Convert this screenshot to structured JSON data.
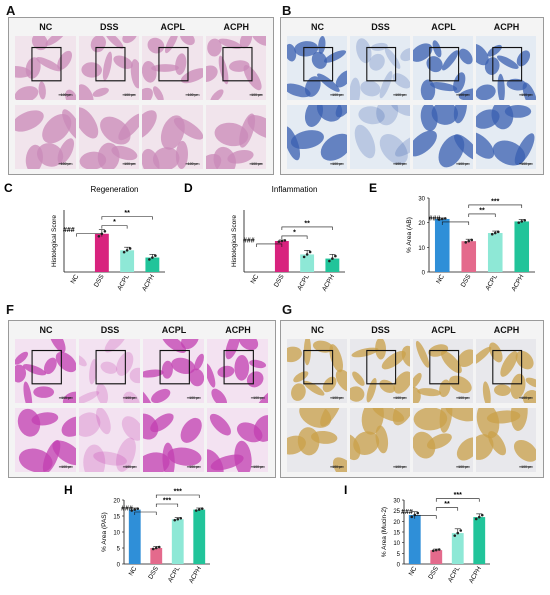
{
  "panels": {
    "A": {
      "letter": "A",
      "columns": [
        "NC",
        "DSS",
        "ACPL",
        "ACPH"
      ],
      "scale": "100 μm",
      "stain": "H&E",
      "colors": {
        "tissue": "#c989b8",
        "bg": "#f1e4ec"
      }
    },
    "B": {
      "letter": "B",
      "columns": [
        "NC",
        "DSS",
        "ACPL",
        "ACPH"
      ],
      "scale": "100 μm",
      "stain": "AB",
      "colors": {
        "tissue": "#3a5fb0",
        "bg": "#e4ebf3"
      }
    },
    "F": {
      "letter": "F",
      "columns": [
        "NC",
        "DSS",
        "ACPL",
        "ACPH"
      ],
      "scale": "100 μm",
      "stain": "PAS",
      "colors": {
        "tissue": "#c23fb0",
        "bg": "#f3e2f1"
      }
    },
    "G": {
      "letter": "G",
      "columns": [
        "NC",
        "DSS",
        "ACPL",
        "ACPH"
      ],
      "scale": "100 μm",
      "stain": "Mucin-2",
      "colors": {
        "tissue": "#c9a04a",
        "bg": "#e8e8ec"
      }
    }
  },
  "chart_data": [
    {
      "id": "C",
      "letter": "C",
      "type": "bar",
      "title": "Regeneration",
      "ylabel": "Histological Score",
      "categories": [
        "NC",
        "DSS",
        "ACPL",
        "ACPH"
      ],
      "values": [
        0,
        3.7,
        2.1,
        1.4
      ],
      "errors": [
        0,
        0.4,
        0.3,
        0.3
      ],
      "ylim": [
        0,
        6
      ],
      "colors": [
        "#2f8fd8",
        "#d8237e",
        "#8ee8d6",
        "#21c49a"
      ],
      "brackets": [
        {
          "from": 0,
          "to": 1,
          "label": "###"
        },
        {
          "from": 1,
          "to": 2,
          "label": "*"
        },
        {
          "from": 1,
          "to": 3,
          "label": "**"
        }
      ]
    },
    {
      "id": "D",
      "letter": "D",
      "type": "bar",
      "title": "Inflammation",
      "ylabel": "Histological Score",
      "categories": [
        "NC",
        "DSS",
        "ACPL",
        "ACPH"
      ],
      "values": [
        0,
        3.0,
        1.7,
        1.3
      ],
      "errors": [
        0,
        0.1,
        0.4,
        0.4
      ],
      "ylim": [
        0,
        6
      ],
      "colors": [
        "#2f8fd8",
        "#d8237e",
        "#8ee8d6",
        "#21c49a"
      ],
      "brackets": [
        {
          "from": 0,
          "to": 1,
          "label": "###"
        },
        {
          "from": 1,
          "to": 2,
          "label": "*"
        },
        {
          "from": 1,
          "to": 3,
          "label": "**"
        }
      ]
    },
    {
      "id": "E",
      "letter": "E",
      "type": "bar",
      "title": "",
      "ylabel": "% Area (AB)",
      "categories": [
        "NC",
        "DSS",
        "ACPL",
        "ACPH"
      ],
      "values": [
        21.5,
        12.5,
        15.8,
        20.5
      ],
      "errors": [
        0.4,
        0.8,
        0.8,
        0.8
      ],
      "ylim": [
        0,
        30
      ],
      "yticks": [
        0,
        10,
        20,
        30
      ],
      "colors": [
        "#2f8fd8",
        "#e46a8c",
        "#8ee8d6",
        "#21c49a"
      ],
      "brackets": [
        {
          "from": 0,
          "to": 1,
          "label": "###"
        },
        {
          "from": 1,
          "to": 2,
          "label": "**"
        },
        {
          "from": 1,
          "to": 3,
          "label": "***"
        }
      ]
    },
    {
      "id": "H",
      "letter": "H",
      "type": "bar",
      "title": "",
      "ylabel": "% Area (PAS)",
      "categories": [
        "NC",
        "DSS",
        "ACPL",
        "ACPH"
      ],
      "values": [
        17.0,
        5.0,
        14.0,
        17.0
      ],
      "errors": [
        0.5,
        0.5,
        0.5,
        0.5
      ],
      "ylim": [
        0,
        20
      ],
      "yticks": [
        0,
        5,
        10,
        15,
        20
      ],
      "colors": [
        "#2f8fd8",
        "#e46a8c",
        "#8ee8d6",
        "#21c49a"
      ],
      "brackets": [
        {
          "from": 0,
          "to": 1,
          "label": "###"
        },
        {
          "from": 1,
          "to": 2,
          "label": "***"
        },
        {
          "from": 1,
          "to": 3,
          "label": "***"
        }
      ]
    },
    {
      "id": "I",
      "letter": "I",
      "type": "bar",
      "title": "",
      "ylabel": "% Area (Mucin-2)",
      "categories": [
        "NC",
        "DSS",
        "ACPL",
        "ACPH"
      ],
      "values": [
        23.0,
        6.5,
        14.5,
        22.0
      ],
      "errors": [
        1.5,
        0.5,
        2.0,
        1.5
      ],
      "ylim": [
        0,
        30
      ],
      "yticks": [
        0,
        5,
        10,
        15,
        20,
        25,
        30
      ],
      "colors": [
        "#2f8fd8",
        "#e46a8c",
        "#8ee8d6",
        "#21c49a"
      ],
      "brackets": [
        {
          "from": 0,
          "to": 1,
          "label": "###"
        },
        {
          "from": 1,
          "to": 2,
          "label": "**"
        },
        {
          "from": 1,
          "to": 3,
          "label": "***"
        }
      ]
    }
  ]
}
